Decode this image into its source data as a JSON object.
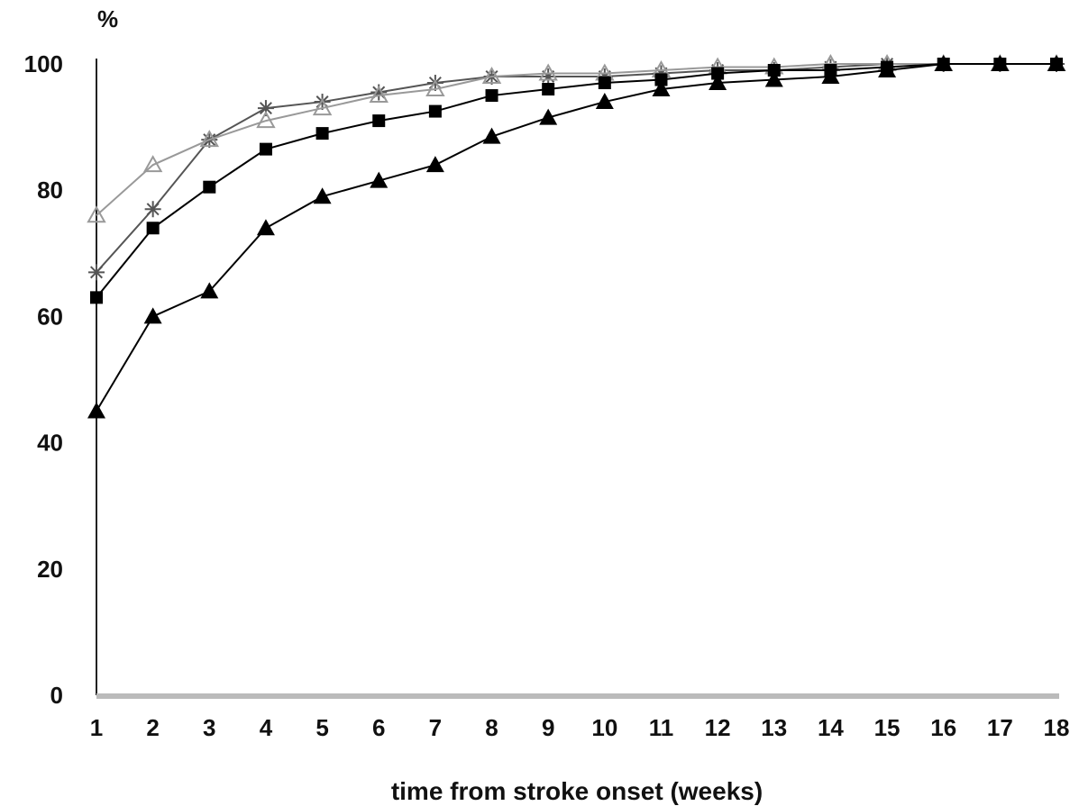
{
  "chart_data": {
    "type": "line",
    "title": "",
    "ylabel": "%",
    "xlabel": "time from stroke onset (weeks)",
    "x": [
      1,
      2,
      3,
      4,
      5,
      6,
      7,
      8,
      9,
      10,
      11,
      12,
      13,
      14,
      15,
      16,
      17,
      18
    ],
    "xlim": [
      1,
      18
    ],
    "ylim": [
      0,
      100
    ],
    "yticks": [
      0,
      20,
      40,
      60,
      80,
      100
    ],
    "grid": false,
    "series": [
      {
        "marker": "asterisk",
        "color": "#555555",
        "values": [
          67,
          77,
          88,
          93,
          94,
          95.5,
          97,
          98,
          98,
          98,
          98.5,
          99,
          99,
          99.5,
          100,
          100,
          100,
          100
        ]
      },
      {
        "marker": "open-triangle",
        "color": "#999999",
        "values": [
          76,
          84,
          88,
          91,
          93,
          95,
          96,
          98,
          98.5,
          98.5,
          99,
          99.5,
          99.5,
          100,
          100,
          100,
          100,
          100
        ]
      },
      {
        "marker": "filled-square",
        "color": "#000000",
        "values": [
          63,
          74,
          80.5,
          86.5,
          89,
          91,
          92.5,
          95,
          96,
          97,
          97.5,
          98.5,
          99,
          99,
          99.5,
          100,
          100,
          100
        ]
      },
      {
        "marker": "filled-triangle",
        "color": "#000000",
        "values": [
          45,
          60,
          64,
          74,
          79,
          81.5,
          84,
          88.5,
          91.5,
          94,
          96,
          97,
          97.5,
          98,
          99,
          100,
          100,
          100
        ]
      }
    ]
  }
}
